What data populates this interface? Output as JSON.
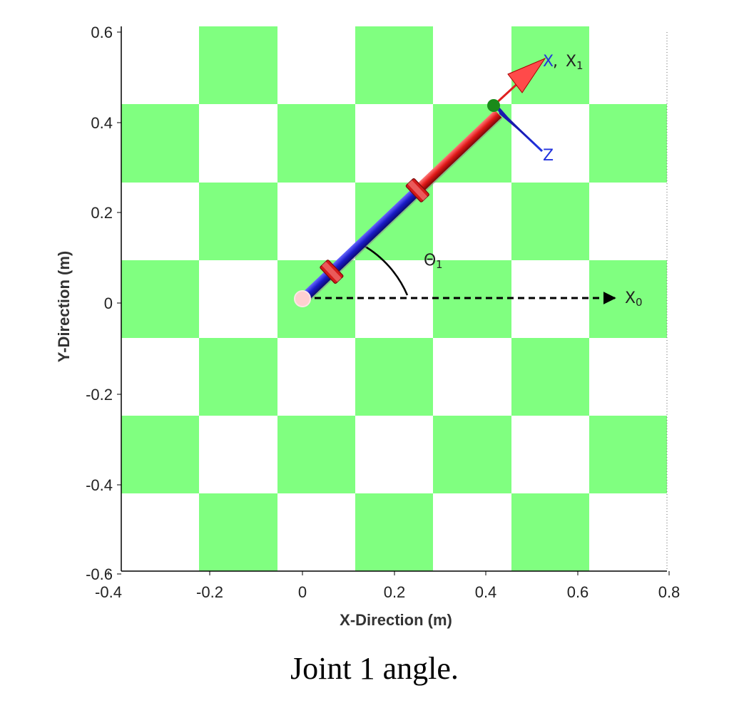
{
  "figure": {
    "x_axis_label": "X-Direction (m)",
    "y_axis_label": "Y-Direction (m)",
    "x_ticks": [
      "-0.4",
      "-0.2",
      "0",
      "0.2",
      "0.4",
      "0.6",
      "0.8"
    ],
    "y_ticks": [
      "0.6",
      "0.4",
      "0.2",
      "0",
      "-0.2",
      "-0.4",
      "-0.6"
    ],
    "x_range": [
      -0.4,
      0.8
    ],
    "y_range": [
      -0.6,
      0.6
    ],
    "checker_colors": [
      "#80ff80",
      "#ffffff"
    ],
    "annotations": {
      "x1_label_x": "X",
      "x1_label_sep": ", ",
      "x1_label_main": "X",
      "x1_label_sub": "1",
      "z_label": "Z",
      "theta_label": "Θ",
      "theta_sub": "1",
      "x0_label": "X",
      "x0_sub": "0"
    },
    "link": {
      "base": [
        0.0,
        0.0
      ],
      "tip": [
        0.43,
        0.43
      ],
      "colors": {
        "lower": "#2020d0",
        "upper": "#e02020",
        "joint": "#ff8a8a",
        "end_marker": "#1a8a1a",
        "base_marker": "#ffd0d0"
      }
    }
  },
  "caption": "Joint 1 angle."
}
